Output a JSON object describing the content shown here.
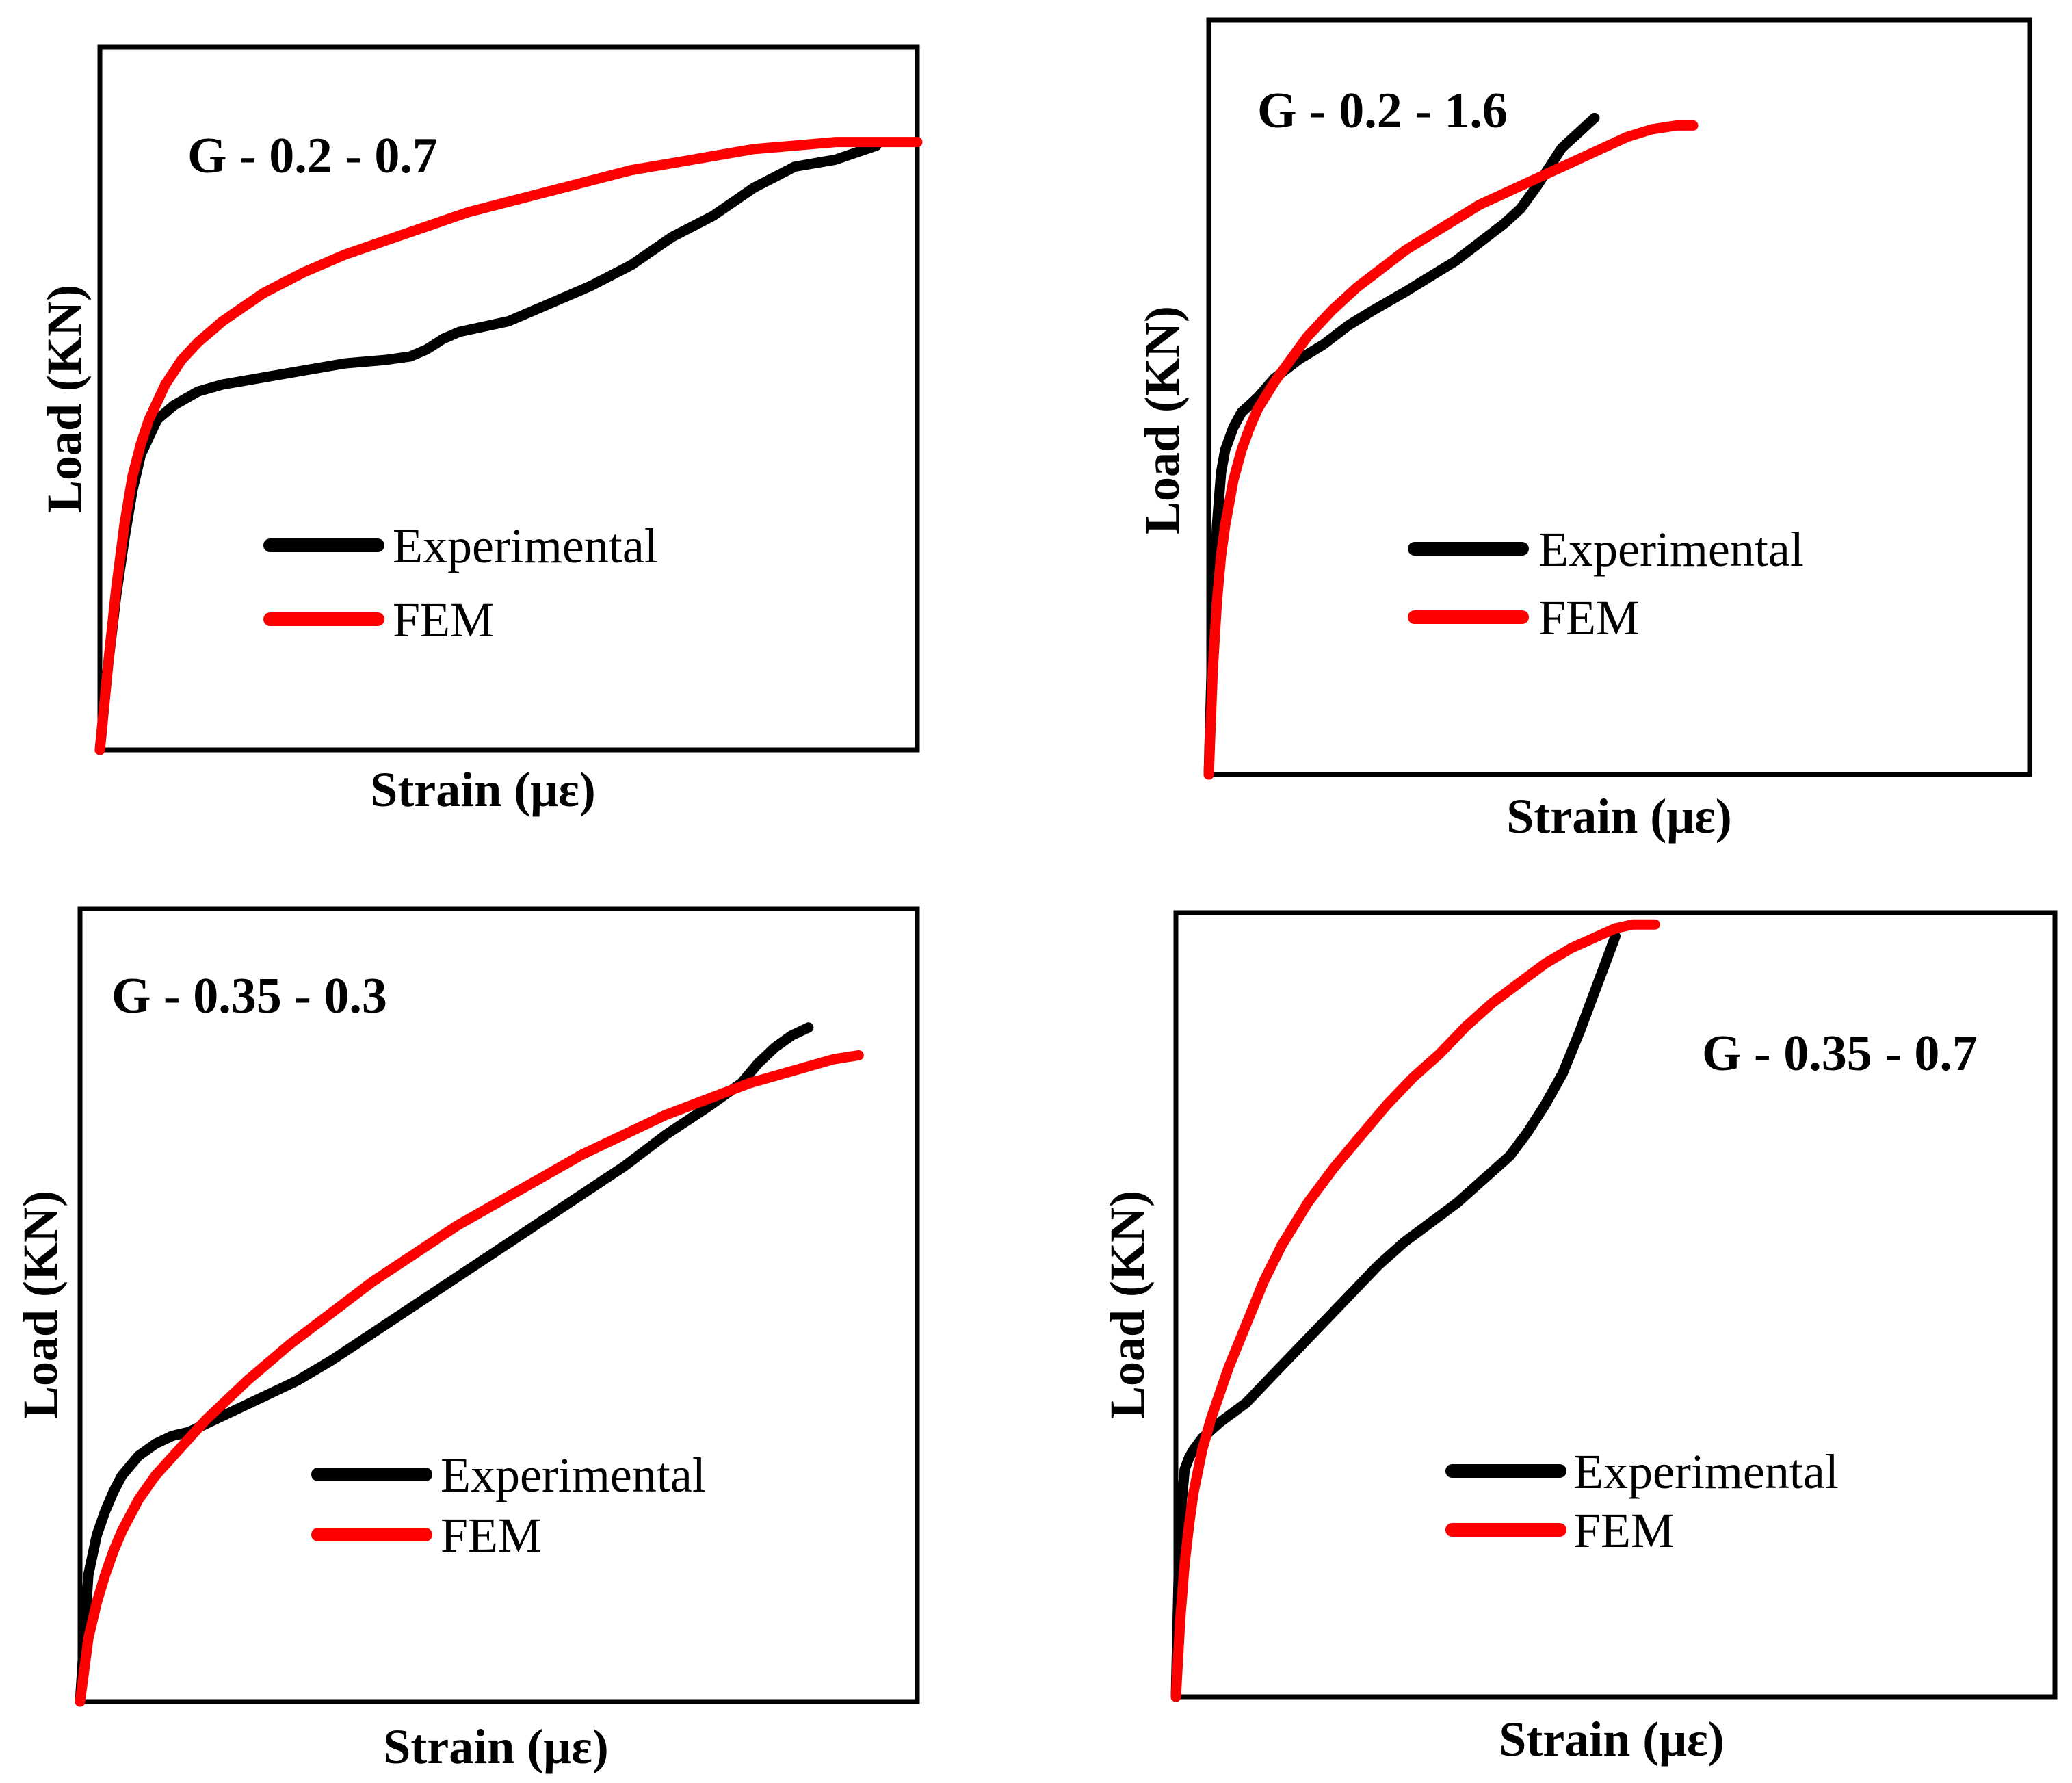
{
  "colors": {
    "experimental": "#000000",
    "fem": "#ff0000",
    "frame": "#000000",
    "background": "#ffffff"
  },
  "chart_data": [
    {
      "type": "line",
      "title": "G - 0.2 - 0.7",
      "xlabel": "Strain (με)",
      "ylabel": "Load (KN)",
      "xlim": [
        0,
        100
      ],
      "ylim": [
        0,
        100
      ],
      "ticks": false,
      "grid": false,
      "legend_position": "center",
      "series": [
        {
          "name": "Experimental",
          "color": "#000000",
          "x": [
            0,
            1,
            2,
            3,
            4,
            5,
            7,
            9,
            12,
            15,
            20,
            25,
            30,
            35,
            38,
            40,
            42,
            44,
            46,
            50,
            55,
            60,
            65,
            70,
            75,
            80,
            85,
            90,
            95
          ],
          "y": [
            0,
            12,
            22,
            30,
            37,
            42,
            47,
            49,
            51,
            52,
            53,
            54,
            55,
            55.5,
            56,
            57,
            58.5,
            59.5,
            60,
            61,
            63.5,
            66,
            69,
            73,
            76,
            80,
            83,
            84,
            86
          ]
        },
        {
          "name": "FEM",
          "color": "#ff0000",
          "x": [
            0,
            1,
            2,
            3,
            4,
            5,
            6,
            8,
            10,
            12,
            15,
            20,
            25,
            30,
            35,
            40,
            45,
            50,
            55,
            60,
            65,
            70,
            75,
            80,
            85,
            90,
            95,
            100
          ],
          "y": [
            0,
            12,
            23,
            32,
            39,
            43.5,
            47,
            52,
            55.5,
            58,
            61,
            65,
            68,
            70.5,
            72.5,
            74.5,
            76.5,
            78,
            79.5,
            81,
            82.5,
            83.5,
            84.5,
            85.5,
            86,
            86.5,
            86.5,
            86.5
          ]
        }
      ]
    },
    {
      "type": "line",
      "title": "G - 0.2 - 1.6",
      "xlabel": "Strain (με)",
      "ylabel": "Load (KN)",
      "xlim": [
        0,
        100
      ],
      "ylim": [
        0,
        100
      ],
      "ticks": false,
      "grid": false,
      "legend_position": "center",
      "series": [
        {
          "name": "Experimental",
          "color": "#000000",
          "x": [
            0,
            0.5,
            1,
            1.5,
            2,
            3,
            4,
            6,
            8,
            11,
            14,
            17,
            20,
            24,
            27,
            30,
            33,
            36,
            38,
            40,
            43,
            47
          ],
          "y": [
            0,
            20,
            33,
            40,
            43,
            46,
            48,
            50,
            52.5,
            55,
            57,
            59.5,
            61.5,
            64,
            66,
            68,
            70.5,
            73,
            75,
            78,
            83,
            87
          ]
        },
        {
          "name": "FEM",
          "color": "#ff0000",
          "x": [
            0,
            0.5,
            1,
            1.5,
            2,
            3,
            4,
            5,
            6,
            8,
            10,
            12,
            15,
            18,
            21,
            24,
            27,
            30,
            33,
            36,
            39,
            42,
            45,
            48,
            51,
            54,
            57,
            59
          ],
          "y": [
            0,
            14,
            23,
            29,
            33,
            39,
            43,
            46,
            48.5,
            52,
            55,
            58,
            61.5,
            64.5,
            67,
            69.5,
            71.5,
            73.5,
            75.5,
            77,
            78.5,
            80,
            81.5,
            83,
            84.5,
            85.5,
            86,
            86
          ]
        }
      ]
    },
    {
      "type": "line",
      "title": "G - 0.35 - 0.3",
      "xlabel": "Strain (με)",
      "ylabel": "Load (KN)",
      "xlim": [
        0,
        100
      ],
      "ylim": [
        0,
        100
      ],
      "ticks": false,
      "grid": false,
      "legend_position": "center",
      "series": [
        {
          "name": "Experimental",
          "color": "#000000",
          "x": [
            0,
            1,
            2,
            3,
            4,
            5,
            7,
            9,
            11,
            13,
            15,
            18,
            22,
            26,
            30,
            35,
            40,
            45,
            50,
            55,
            60,
            65,
            70,
            75,
            79,
            81,
            83,
            85,
            87
          ],
          "y": [
            0,
            16,
            21,
            24,
            26.5,
            28.5,
            31,
            32.5,
            33.5,
            34,
            35,
            36.5,
            38.5,
            40.5,
            43,
            46.5,
            50,
            53.5,
            57,
            60.5,
            64,
            67.5,
            71.5,
            75,
            78,
            80.5,
            82.5,
            84,
            85
          ]
        },
        {
          "name": "FEM",
          "color": "#ff0000",
          "x": [
            0,
            1,
            2,
            3,
            4,
            5,
            7,
            9,
            12,
            15,
            20,
            25,
            30,
            35,
            40,
            45,
            50,
            55,
            60,
            65,
            70,
            75,
            80,
            85,
            90,
            93
          ],
          "y": [
            0,
            8,
            12.5,
            16,
            19,
            21.5,
            25.5,
            28.5,
            32,
            35.5,
            40.5,
            45,
            49,
            53,
            56.5,
            60,
            63,
            66,
            69,
            71.5,
            74,
            76,
            78,
            79.5,
            81,
            81.5
          ]
        }
      ]
    },
    {
      "type": "line",
      "title": "G - 0.35 - 0.7",
      "xlabel": "Strain (με)",
      "ylabel": "Load (KN)",
      "xlim": [
        0,
        100
      ],
      "ylim": [
        0,
        100
      ],
      "ticks": false,
      "grid": false,
      "legend_position": "center",
      "series": [
        {
          "name": "Experimental",
          "color": "#000000",
          "x": [
            0,
            0.3,
            0.6,
            1,
            1.5,
            2,
            3,
            5,
            8,
            11,
            14,
            17,
            20,
            23,
            26,
            29,
            32,
            35,
            38,
            40,
            42,
            44,
            46,
            48,
            49,
            50
          ],
          "y": [
            0,
            15,
            24,
            29,
            30.5,
            31.5,
            33,
            35,
            37.5,
            41,
            44.5,
            48,
            51.5,
            55,
            58,
            60.5,
            63,
            66,
            69,
            72,
            75.5,
            79.5,
            85,
            91,
            94,
            97
          ]
        },
        {
          "name": "FEM",
          "color": "#ff0000",
          "x": [
            0,
            0.5,
            1,
            1.5,
            2,
            3,
            4,
            6,
            8,
            10,
            12,
            15,
            18,
            21,
            24,
            27,
            30,
            33,
            36,
            39,
            42,
            45,
            48,
            50,
            52,
            54.5
          ],
          "y": [
            0,
            10,
            17,
            22,
            26,
            31.5,
            35.5,
            42,
            47.5,
            53,
            57.5,
            63,
            67.5,
            71.5,
            75.5,
            79,
            82,
            85.5,
            88.5,
            91,
            93.5,
            95.5,
            97,
            98,
            98.5,
            98.5
          ]
        }
      ]
    }
  ]
}
